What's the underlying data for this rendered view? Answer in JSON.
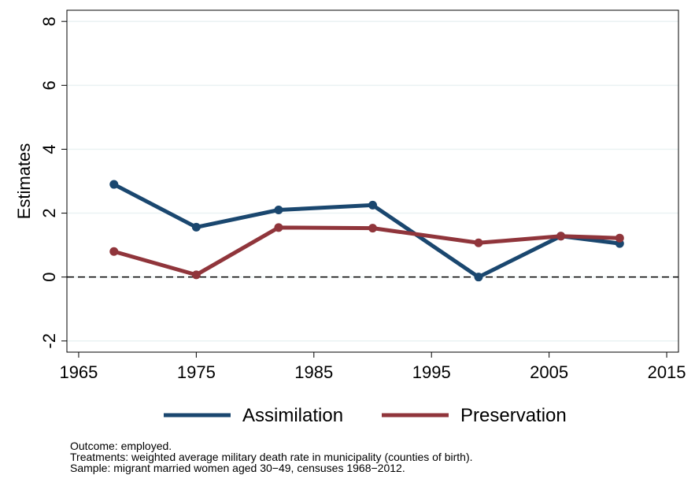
{
  "chart_data": {
    "type": "line",
    "y_label": "Estimates",
    "x": [
      1968,
      1975,
      1982,
      1990,
      1999,
      2006,
      2011
    ],
    "series": [
      {
        "name": "Assimilation",
        "color": "#1a476f",
        "values": [
          2.9,
          1.56,
          2.1,
          2.25,
          0.0,
          1.28,
          1.05
        ]
      },
      {
        "name": "Preservation",
        "color": "#90353b",
        "values": [
          0.8,
          0.07,
          1.55,
          1.53,
          1.07,
          1.28,
          1.22
        ]
      }
    ],
    "xlim": [
      1964,
      2016
    ],
    "xticks": [
      1965,
      1975,
      1985,
      1995,
      2005,
      2015
    ],
    "ylim": [
      -2.35,
      8.35
    ],
    "yticks": [
      -2,
      0,
      2,
      4,
      6,
      8
    ],
    "grid": true,
    "hline": 0,
    "legend": "bottom",
    "notes": [
      "Outcome: employed.",
      "Treatments: weighted average military death rate in municipality (counties of birth).",
      "Sample: migrant married women aged 30−49, censuses 1968−2012."
    ]
  }
}
